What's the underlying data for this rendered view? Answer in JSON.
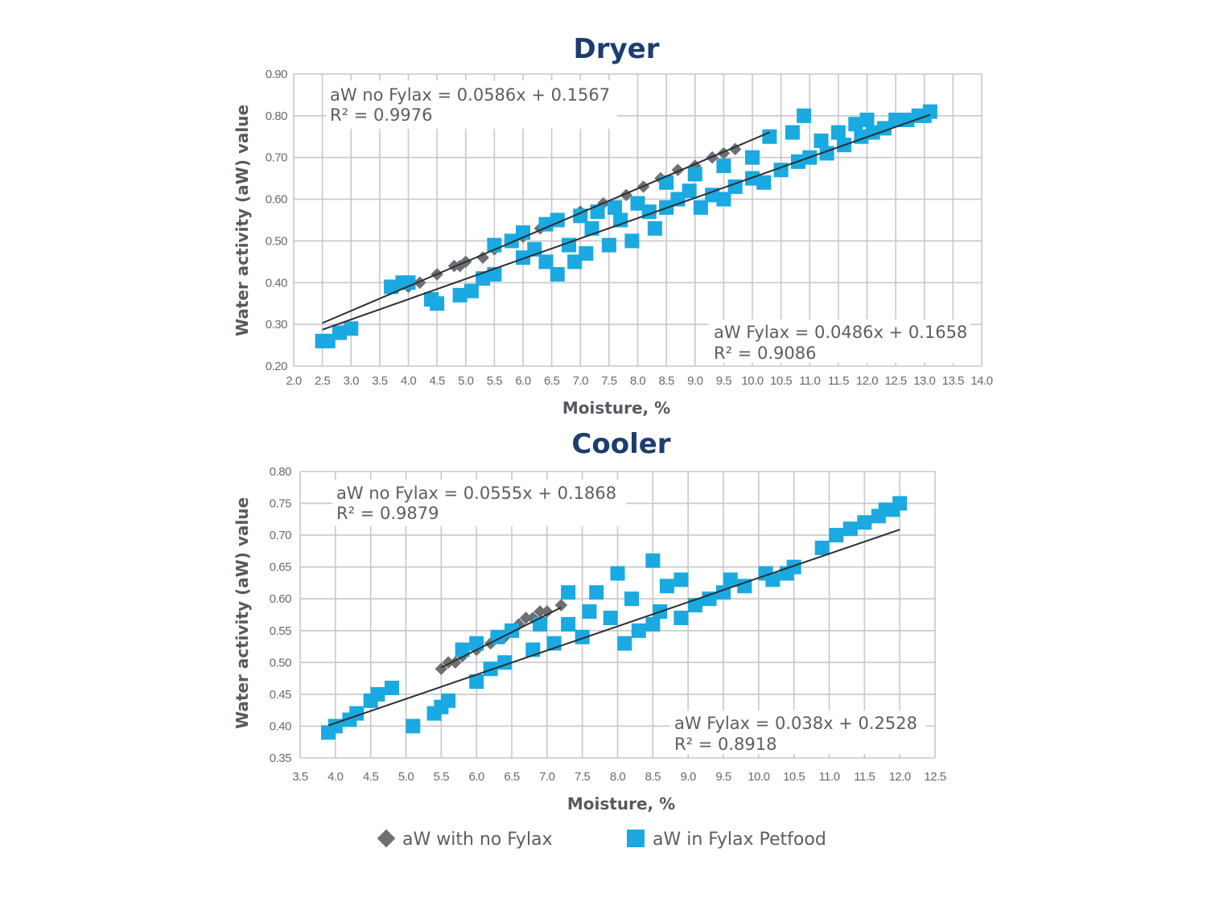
{
  "colors": {
    "title": "#1d3d6e",
    "grid": "#c8c8c8",
    "fylax": "#1aa9e1",
    "no_fylax": "#6e6f72",
    "trend": "#2b2f33"
  },
  "legend": {
    "no_fylax_label": "aW with no Fylax",
    "no_fylax_icon": "diamond-icon",
    "fylax_label": "aW in Fylax Petfood",
    "fylax_icon": "square-icon"
  },
  "chart_data": [
    {
      "type": "scatter",
      "title": "Dryer",
      "xlabel": "Moisture, %",
      "ylabel": "Water activity (aW) value",
      "x_ticks": [
        "2.0",
        "2.5",
        "3.0",
        "3.5",
        "4.0",
        "4.5",
        "5.0",
        "5.5",
        "6.0",
        "6.5",
        "7.0",
        "7.5",
        "8.0",
        "8.5",
        "9.0",
        "9.5",
        "10.0",
        "10.5",
        "11.0",
        "11.5",
        "12.0",
        "12.5",
        "13.0",
        "13.5",
        "14.0"
      ],
      "y_ticks": [
        "0.20",
        "0.30",
        "0.40",
        "0.50",
        "0.60",
        "0.70",
        "0.80",
        "0.90"
      ],
      "ylim": [
        0.2,
        0.9
      ],
      "grid": true,
      "annotations": [
        {
          "line1": "aW no Fylax = 0.0586x + 0.1567",
          "line2": "R² = 0.9976",
          "placement": "top-left"
        },
        {
          "line1": "aW Fylax = 0.0486x + 0.1658",
          "line2": "R² = 0.9086",
          "placement": "bottom-right"
        }
      ],
      "series": [
        {
          "name": "aW with no Fylax",
          "marker": "diamond",
          "points": [
            [
              4.0,
              0.39
            ],
            [
              4.2,
              0.4
            ],
            [
              4.5,
              0.42
            ],
            [
              4.8,
              0.44
            ],
            [
              4.9,
              0.44
            ],
            [
              5.0,
              0.45
            ],
            [
              5.3,
              0.46
            ],
            [
              5.5,
              0.48
            ],
            [
              5.8,
              0.5
            ],
            [
              6.0,
              0.51
            ],
            [
              6.3,
              0.53
            ],
            [
              6.6,
              0.55
            ],
            [
              7.0,
              0.57
            ],
            [
              7.4,
              0.59
            ],
            [
              7.8,
              0.61
            ],
            [
              8.1,
              0.63
            ],
            [
              8.4,
              0.65
            ],
            [
              8.7,
              0.67
            ],
            [
              9.0,
              0.68
            ],
            [
              9.3,
              0.7
            ],
            [
              9.5,
              0.71
            ],
            [
              9.7,
              0.72
            ]
          ]
        },
        {
          "name": "aW in Fylax Petfood",
          "marker": "square",
          "points": [
            [
              2.5,
              0.26
            ],
            [
              2.6,
              0.26
            ],
            [
              2.8,
              0.28
            ],
            [
              3.0,
              0.29
            ],
            [
              3.7,
              0.39
            ],
            [
              3.9,
              0.4
            ],
            [
              4.0,
              0.4
            ],
            [
              4.4,
              0.36
            ],
            [
              4.5,
              0.35
            ],
            [
              4.9,
              0.37
            ],
            [
              5.1,
              0.38
            ],
            [
              5.3,
              0.41
            ],
            [
              5.5,
              0.42
            ],
            [
              5.5,
              0.49
            ],
            [
              5.8,
              0.5
            ],
            [
              6.0,
              0.52
            ],
            [
              6.0,
              0.46
            ],
            [
              6.2,
              0.48
            ],
            [
              6.4,
              0.45
            ],
            [
              6.4,
              0.54
            ],
            [
              6.6,
              0.42
            ],
            [
              6.6,
              0.55
            ],
            [
              6.8,
              0.49
            ],
            [
              6.9,
              0.45
            ],
            [
              7.0,
              0.56
            ],
            [
              7.1,
              0.47
            ],
            [
              7.2,
              0.53
            ],
            [
              7.3,
              0.57
            ],
            [
              7.5,
              0.49
            ],
            [
              7.6,
              0.58
            ],
            [
              7.7,
              0.55
            ],
            [
              7.9,
              0.5
            ],
            [
              8.0,
              0.59
            ],
            [
              8.2,
              0.57
            ],
            [
              8.3,
              0.53
            ],
            [
              8.5,
              0.58
            ],
            [
              8.5,
              0.64
            ],
            [
              8.7,
              0.6
            ],
            [
              8.9,
              0.62
            ],
            [
              9.0,
              0.66
            ],
            [
              9.1,
              0.58
            ],
            [
              9.3,
              0.61
            ],
            [
              9.5,
              0.6
            ],
            [
              9.5,
              0.68
            ],
            [
              9.7,
              0.63
            ],
            [
              10.0,
              0.65
            ],
            [
              10.0,
              0.7
            ],
            [
              10.2,
              0.64
            ],
            [
              10.3,
              0.75
            ],
            [
              10.5,
              0.67
            ],
            [
              10.7,
              0.76
            ],
            [
              10.8,
              0.69
            ],
            [
              10.9,
              0.8
            ],
            [
              11.0,
              0.7
            ],
            [
              11.2,
              0.74
            ],
            [
              11.3,
              0.71
            ],
            [
              11.5,
              0.76
            ],
            [
              11.6,
              0.73
            ],
            [
              11.8,
              0.78
            ],
            [
              11.9,
              0.75
            ],
            [
              12.0,
              0.79
            ],
            [
              12.1,
              0.76
            ],
            [
              12.3,
              0.77
            ],
            [
              12.5,
              0.79
            ],
            [
              12.7,
              0.79
            ],
            [
              12.9,
              0.8
            ],
            [
              13.0,
              0.8
            ],
            [
              13.1,
              0.81
            ]
          ]
        }
      ],
      "trendlines": [
        {
          "series": "aW with no Fylax",
          "slope": 0.0586,
          "intercept": 0.1567,
          "x_range": [
            2.5,
            10.3
          ]
        },
        {
          "series": "aW in Fylax Petfood",
          "slope": 0.0486,
          "intercept": 0.1658,
          "x_range": [
            2.5,
            13.1
          ]
        }
      ]
    },
    {
      "type": "scatter",
      "title": "Cooler",
      "xlabel": "Moisture, %",
      "ylabel": "Water activity (aW) value",
      "x_ticks": [
        "3.5",
        "4.0",
        "4.5",
        "5.0",
        "5.5",
        "6.0",
        "6.5",
        "7.0",
        "7.5",
        "8.0",
        "8.5",
        "9.0",
        "9.5",
        "10.0",
        "10.5",
        "11.0",
        "11.5",
        "12.0",
        "12.5"
      ],
      "y_ticks": [
        "0.35",
        "0.40",
        "0.45",
        "0.50",
        "0.55",
        "0.60",
        "0.65",
        "0.70",
        "0.75",
        "0.80"
      ],
      "ylim": [
        0.35,
        0.8
      ],
      "grid": true,
      "annotations": [
        {
          "line1": "aW no Fylax = 0.0555x + 0.1868",
          "line2": "R² = 0.9879",
          "placement": "top-left"
        },
        {
          "line1": "aW Fylax = 0.038x + 0.2528",
          "line2": "R² = 0.8918",
          "placement": "bottom-right"
        }
      ],
      "series": [
        {
          "name": "aW with no Fylax",
          "marker": "diamond",
          "points": [
            [
              5.5,
              0.49
            ],
            [
              5.6,
              0.5
            ],
            [
              5.7,
              0.5
            ],
            [
              5.8,
              0.51
            ],
            [
              6.0,
              0.52
            ],
            [
              6.2,
              0.53
            ],
            [
              6.4,
              0.54
            ],
            [
              6.6,
              0.56
            ],
            [
              6.7,
              0.57
            ],
            [
              6.8,
              0.57
            ],
            [
              6.9,
              0.58
            ],
            [
              7.0,
              0.58
            ],
            [
              7.2,
              0.59
            ]
          ]
        },
        {
          "name": "aW in Fylax Petfood",
          "marker": "square",
          "points": [
            [
              3.9,
              0.39
            ],
            [
              4.0,
              0.4
            ],
            [
              4.2,
              0.41
            ],
            [
              4.3,
              0.42
            ],
            [
              4.5,
              0.44
            ],
            [
              4.6,
              0.45
            ],
            [
              4.8,
              0.46
            ],
            [
              5.1,
              0.4
            ],
            [
              5.4,
              0.42
            ],
            [
              5.5,
              0.43
            ],
            [
              5.6,
              0.44
            ],
            [
              5.8,
              0.52
            ],
            [
              6.0,
              0.47
            ],
            [
              6.0,
              0.53
            ],
            [
              6.2,
              0.49
            ],
            [
              6.3,
              0.54
            ],
            [
              6.4,
              0.5
            ],
            [
              6.5,
              0.55
            ],
            [
              6.8,
              0.52
            ],
            [
              6.9,
              0.56
            ],
            [
              7.1,
              0.53
            ],
            [
              7.3,
              0.56
            ],
            [
              7.3,
              0.61
            ],
            [
              7.5,
              0.54
            ],
            [
              7.6,
              0.58
            ],
            [
              7.7,
              0.61
            ],
            [
              7.9,
              0.57
            ],
            [
              8.0,
              0.64
            ],
            [
              8.1,
              0.53
            ],
            [
              8.2,
              0.6
            ],
            [
              8.3,
              0.55
            ],
            [
              8.5,
              0.56
            ],
            [
              8.5,
              0.66
            ],
            [
              8.6,
              0.58
            ],
            [
              8.7,
              0.62
            ],
            [
              8.9,
              0.57
            ],
            [
              8.9,
              0.63
            ],
            [
              9.1,
              0.59
            ],
            [
              9.3,
              0.6
            ],
            [
              9.5,
              0.61
            ],
            [
              9.6,
              0.63
            ],
            [
              9.8,
              0.62
            ],
            [
              10.1,
              0.64
            ],
            [
              10.2,
              0.63
            ],
            [
              10.4,
              0.64
            ],
            [
              10.5,
              0.65
            ],
            [
              10.9,
              0.68
            ],
            [
              11.1,
              0.7
            ],
            [
              11.3,
              0.71
            ],
            [
              11.5,
              0.72
            ],
            [
              11.7,
              0.73
            ],
            [
              11.8,
              0.74
            ],
            [
              11.9,
              0.74
            ],
            [
              12.0,
              0.75
            ]
          ]
        }
      ],
      "trendlines": [
        {
          "series": "aW with no Fylax",
          "slope": 0.0555,
          "intercept": 0.1868,
          "x_range": [
            5.5,
            7.2
          ]
        },
        {
          "series": "aW in Fylax Petfood",
          "slope": 0.038,
          "intercept": 0.2528,
          "x_range": [
            3.9,
            12.0
          ]
        }
      ]
    }
  ]
}
